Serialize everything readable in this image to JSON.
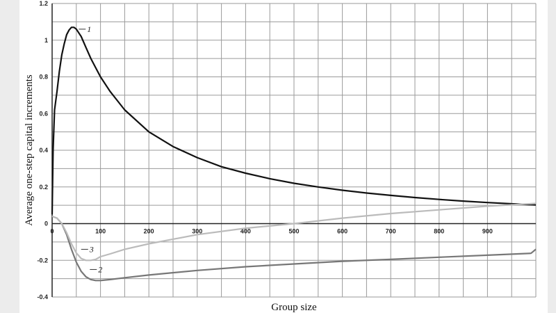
{
  "chart_data": {
    "type": "line",
    "xlabel": "Group size",
    "ylabel": "Average one-step capital increments",
    "xlim": [
      0,
      1000
    ],
    "ylim": [
      -0.4,
      1.2
    ],
    "x_ticks": [
      0,
      100,
      200,
      300,
      400,
      500,
      600,
      700,
      800,
      900
    ],
    "y_ticks": [
      -0.4,
      -0.2,
      0,
      0.2,
      0.4,
      0.6,
      0.8,
      1,
      1.2
    ],
    "x_grid_step": 50,
    "y_grid_step": 0.1,
    "grid": true,
    "series": [
      {
        "name": "1",
        "color": "#111111",
        "label_at": [
          55,
          1.06
        ],
        "x": [
          0,
          2,
          5,
          10,
          15,
          20,
          25,
          30,
          35,
          40,
          45,
          50,
          55,
          60,
          70,
          80,
          90,
          100,
          120,
          150,
          200,
          250,
          300,
          350,
          400,
          450,
          500,
          550,
          600,
          650,
          700,
          750,
          800,
          850,
          900,
          950,
          1000
        ],
        "y": [
          0.05,
          0.4,
          0.62,
          0.72,
          0.83,
          0.92,
          0.98,
          1.03,
          1.055,
          1.07,
          1.07,
          1.06,
          1.04,
          1.02,
          0.96,
          0.9,
          0.85,
          0.8,
          0.72,
          0.62,
          0.5,
          0.42,
          0.36,
          0.31,
          0.275,
          0.245,
          0.22,
          0.2,
          0.182,
          0.167,
          0.154,
          0.142,
          0.132,
          0.123,
          0.115,
          0.108,
          0.102
        ]
      },
      {
        "name": "2",
        "color": "#777777",
        "label_at": [
          78,
          -0.25
        ],
        "x": [
          0,
          10,
          20,
          30,
          40,
          50,
          60,
          70,
          80,
          90,
          100,
          120,
          150,
          200,
          300,
          400,
          500,
          600,
          700,
          800,
          900,
          990,
          1000
        ],
        "y": [
          0.04,
          0.03,
          0.0,
          -0.06,
          -0.14,
          -0.21,
          -0.26,
          -0.29,
          -0.305,
          -0.31,
          -0.31,
          -0.305,
          -0.295,
          -0.28,
          -0.255,
          -0.235,
          -0.22,
          -0.205,
          -0.195,
          -0.183,
          -0.172,
          -0.162,
          -0.14
        ]
      },
      {
        "name": "3",
        "color": "#bbbbbb",
        "label_at": [
          60,
          -0.14
        ],
        "x": [
          0,
          10,
          20,
          30,
          40,
          50,
          60,
          70,
          80,
          90,
          100,
          120,
          150,
          200,
          300,
          400,
          500,
          600,
          700,
          800,
          900,
          1000
        ],
        "y": [
          0.04,
          0.03,
          0.0,
          -0.05,
          -0.11,
          -0.16,
          -0.19,
          -0.2,
          -0.2,
          -0.195,
          -0.18,
          -0.165,
          -0.14,
          -0.11,
          -0.06,
          -0.025,
          0.0,
          0.03,
          0.055,
          0.075,
          0.095,
          0.11
        ]
      }
    ]
  }
}
